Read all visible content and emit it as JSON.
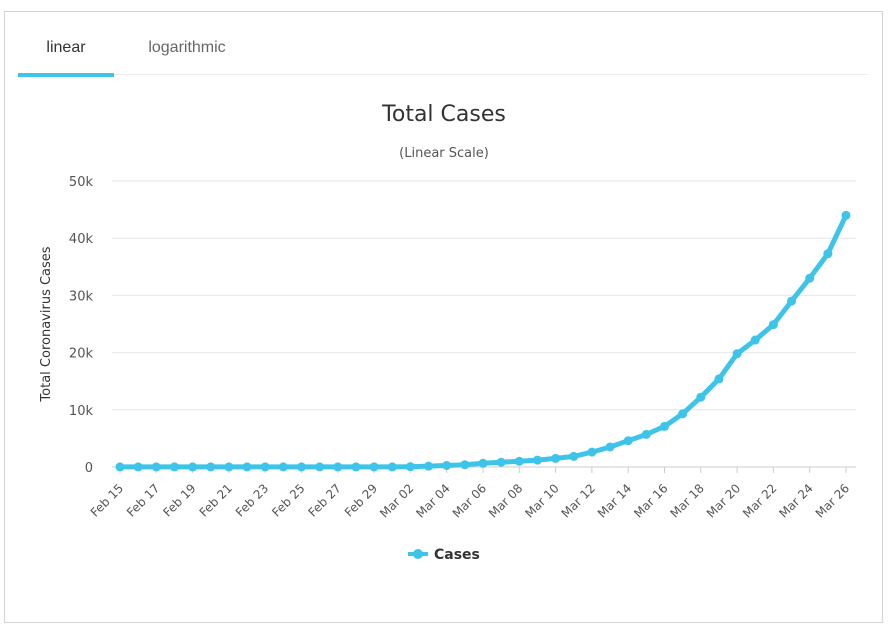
{
  "tabs": [
    {
      "label": "linear",
      "active": true
    },
    {
      "label": "logarithmic",
      "active": false
    }
  ],
  "colors": {
    "series": "#3dc4e8",
    "grid": "#e6e6e6",
    "axis": "#cccccc",
    "text": "#333333"
  },
  "chart_data": {
    "type": "line",
    "title": "Total Cases",
    "subtitle": "(Linear Scale)",
    "ylabel": "Total Coronavirus Cases",
    "xlabel": "",
    "ylim": [
      0,
      50000
    ],
    "yticks": [
      "0",
      "10k",
      "20k",
      "30k",
      "40k",
      "50k"
    ],
    "ytick_values": [
      0,
      10000,
      20000,
      30000,
      40000,
      50000
    ],
    "grid": true,
    "legend": "bottom-center",
    "x": [
      "Feb 15",
      "Feb 16",
      "Feb 17",
      "Feb 18",
      "Feb 19",
      "Feb 20",
      "Feb 21",
      "Feb 22",
      "Feb 23",
      "Feb 24",
      "Feb 25",
      "Feb 26",
      "Feb 27",
      "Feb 28",
      "Feb 29",
      "Mar 01",
      "Mar 02",
      "Mar 03",
      "Mar 04",
      "Mar 05",
      "Mar 06",
      "Mar 07",
      "Mar 08",
      "Mar 09",
      "Mar 10",
      "Mar 11",
      "Mar 12",
      "Mar 13",
      "Mar 14",
      "Mar 15",
      "Mar 16",
      "Mar 17",
      "Mar 18",
      "Mar 19",
      "Mar 20",
      "Mar 21",
      "Mar 22",
      "Mar 23",
      "Mar 24",
      "Mar 25",
      "Mar 26"
    ],
    "xticks": [
      "Feb 15",
      "Feb 17",
      "Feb 19",
      "Feb 21",
      "Feb 23",
      "Feb 25",
      "Feb 27",
      "Feb 29",
      "Mar 02",
      "Mar 04",
      "Mar 06",
      "Mar 08",
      "Mar 10",
      "Mar 12",
      "Mar 14",
      "Mar 16",
      "Mar 18",
      "Mar 20",
      "Mar 22",
      "Mar 24",
      "Mar 26"
    ],
    "series": [
      {
        "name": "Cases",
        "values": [
          16,
          16,
          16,
          16,
          16,
          16,
          16,
          16,
          16,
          16,
          16,
          16,
          16,
          16,
          16,
          17,
          58,
          149,
          266,
          400,
          650,
          840,
          1000,
          1200,
          1500,
          1850,
          2600,
          3500,
          4600,
          5700,
          7100,
          9300,
          12200,
          15400,
          19800,
          22200,
          24900,
          29000,
          33000,
          37300,
          44000
        ]
      }
    ]
  }
}
